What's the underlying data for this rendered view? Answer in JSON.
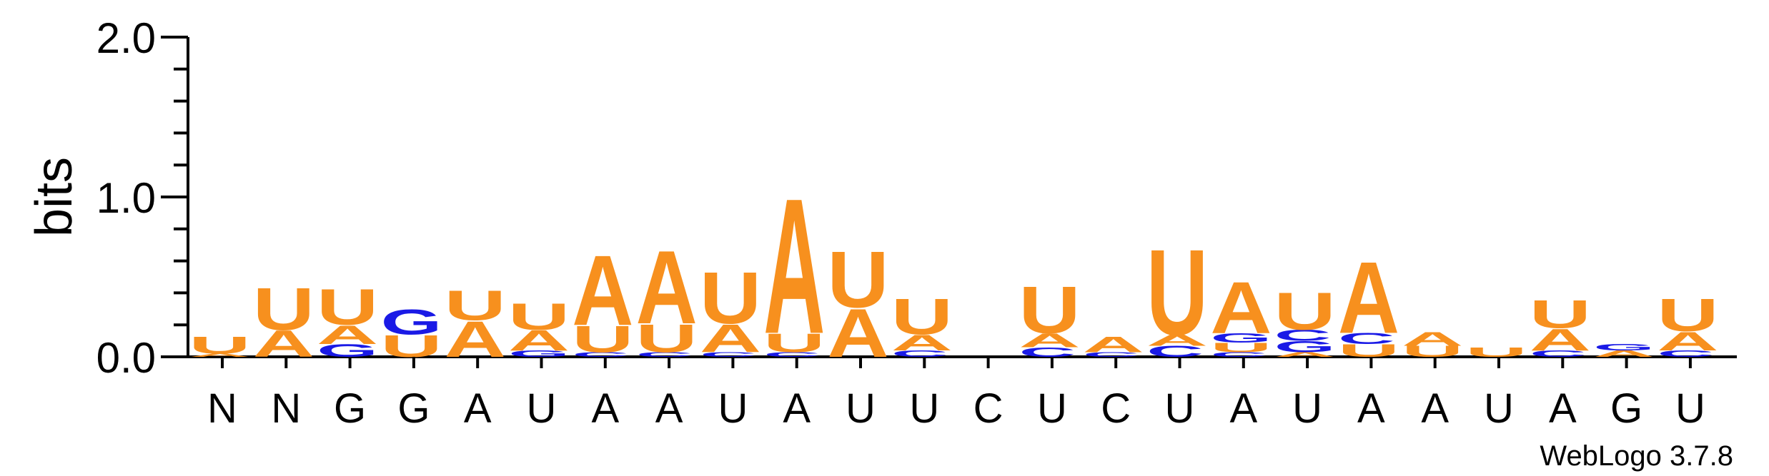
{
  "chart_data": {
    "type": "sequence-logo",
    "ylabel": "bits",
    "ylim": [
      0,
      2.0
    ],
    "y_ticks": [
      "0.0",
      "1.0",
      "2.0"
    ],
    "credit": "WebLogo 3.7.8",
    "colors": {
      "A": "#f7901e",
      "U": "#f7901e",
      "G": "#1a1ae6",
      "C": "#1a1ae6"
    },
    "positions": [
      {
        "label": "N",
        "stack": [
          [
            "A",
            0.02
          ],
          [
            "U",
            0.11
          ]
        ]
      },
      {
        "label": "N",
        "stack": [
          [
            "A",
            0.17
          ],
          [
            "U",
            0.27
          ]
        ]
      },
      {
        "label": "G",
        "stack": [
          [
            "G",
            0.08
          ],
          [
            "A",
            0.12
          ],
          [
            "U",
            0.23
          ]
        ]
      },
      {
        "label": "G",
        "stack": [
          [
            "U",
            0.14
          ],
          [
            "G",
            0.16
          ]
        ]
      },
      {
        "label": "A",
        "stack": [
          [
            "A",
            0.23
          ],
          [
            "U",
            0.19
          ]
        ]
      },
      {
        "label": "U",
        "stack": [
          [
            "G",
            0.04
          ],
          [
            "A",
            0.13
          ],
          [
            "U",
            0.17
          ]
        ]
      },
      {
        "label": "A",
        "stack": [
          [
            "C",
            0.03
          ],
          [
            "U",
            0.17
          ],
          [
            "A",
            0.45
          ]
        ]
      },
      {
        "label": "A",
        "stack": [
          [
            "C",
            0.03
          ],
          [
            "U",
            0.18
          ],
          [
            "A",
            0.47
          ]
        ]
      },
      {
        "label": "U",
        "stack": [
          [
            "C",
            0.03
          ],
          [
            "A",
            0.18
          ],
          [
            "U",
            0.33
          ]
        ]
      },
      {
        "label": "A",
        "stack": [
          [
            "C",
            0.03
          ],
          [
            "U",
            0.12
          ],
          [
            "A",
            0.87
          ]
        ]
      },
      {
        "label": "U",
        "stack": [
          [
            "A",
            0.31
          ],
          [
            "U",
            0.36
          ]
        ]
      },
      {
        "label": "U",
        "stack": [
          [
            "C",
            0.04
          ],
          [
            "A",
            0.1
          ],
          [
            "U",
            0.23
          ]
        ]
      },
      {
        "label": "C",
        "stack": []
      },
      {
        "label": "U",
        "stack": [
          [
            "C",
            0.06
          ],
          [
            "A",
            0.09
          ],
          [
            "U",
            0.3
          ]
        ]
      },
      {
        "label": "C",
        "stack": [
          [
            "C",
            0.03
          ],
          [
            "A",
            0.1
          ]
        ]
      },
      {
        "label": "U",
        "stack": [
          [
            "C",
            0.07
          ],
          [
            "A",
            0.07
          ],
          [
            "U",
            0.55
          ]
        ]
      },
      {
        "label": "A",
        "stack": [
          [
            "C",
            0.03
          ],
          [
            "U",
            0.06
          ],
          [
            "G",
            0.06
          ],
          [
            "A",
            0.33
          ]
        ]
      },
      {
        "label": "U",
        "stack": [
          [
            "A",
            0.03
          ],
          [
            "G",
            0.07
          ],
          [
            "C",
            0.07
          ],
          [
            "U",
            0.24
          ]
        ]
      },
      {
        "label": "A",
        "stack": [
          [
            "U",
            0.08
          ],
          [
            "C",
            0.07
          ],
          [
            "A",
            0.46
          ]
        ]
      },
      {
        "label": "A",
        "stack": [
          [
            "U",
            0.07
          ],
          [
            "A",
            0.09
          ]
        ]
      },
      {
        "label": "U",
        "stack": [
          [
            "U",
            0.06
          ]
        ]
      },
      {
        "label": "A",
        "stack": [
          [
            "C",
            0.04
          ],
          [
            "A",
            0.14
          ],
          [
            "U",
            0.18
          ]
        ]
      },
      {
        "label": "G",
        "stack": [
          [
            "A",
            0.04
          ],
          [
            "G",
            0.04
          ]
        ]
      },
      {
        "label": "U",
        "stack": [
          [
            "C",
            0.04
          ],
          [
            "A",
            0.12
          ],
          [
            "U",
            0.21
          ]
        ]
      }
    ]
  }
}
